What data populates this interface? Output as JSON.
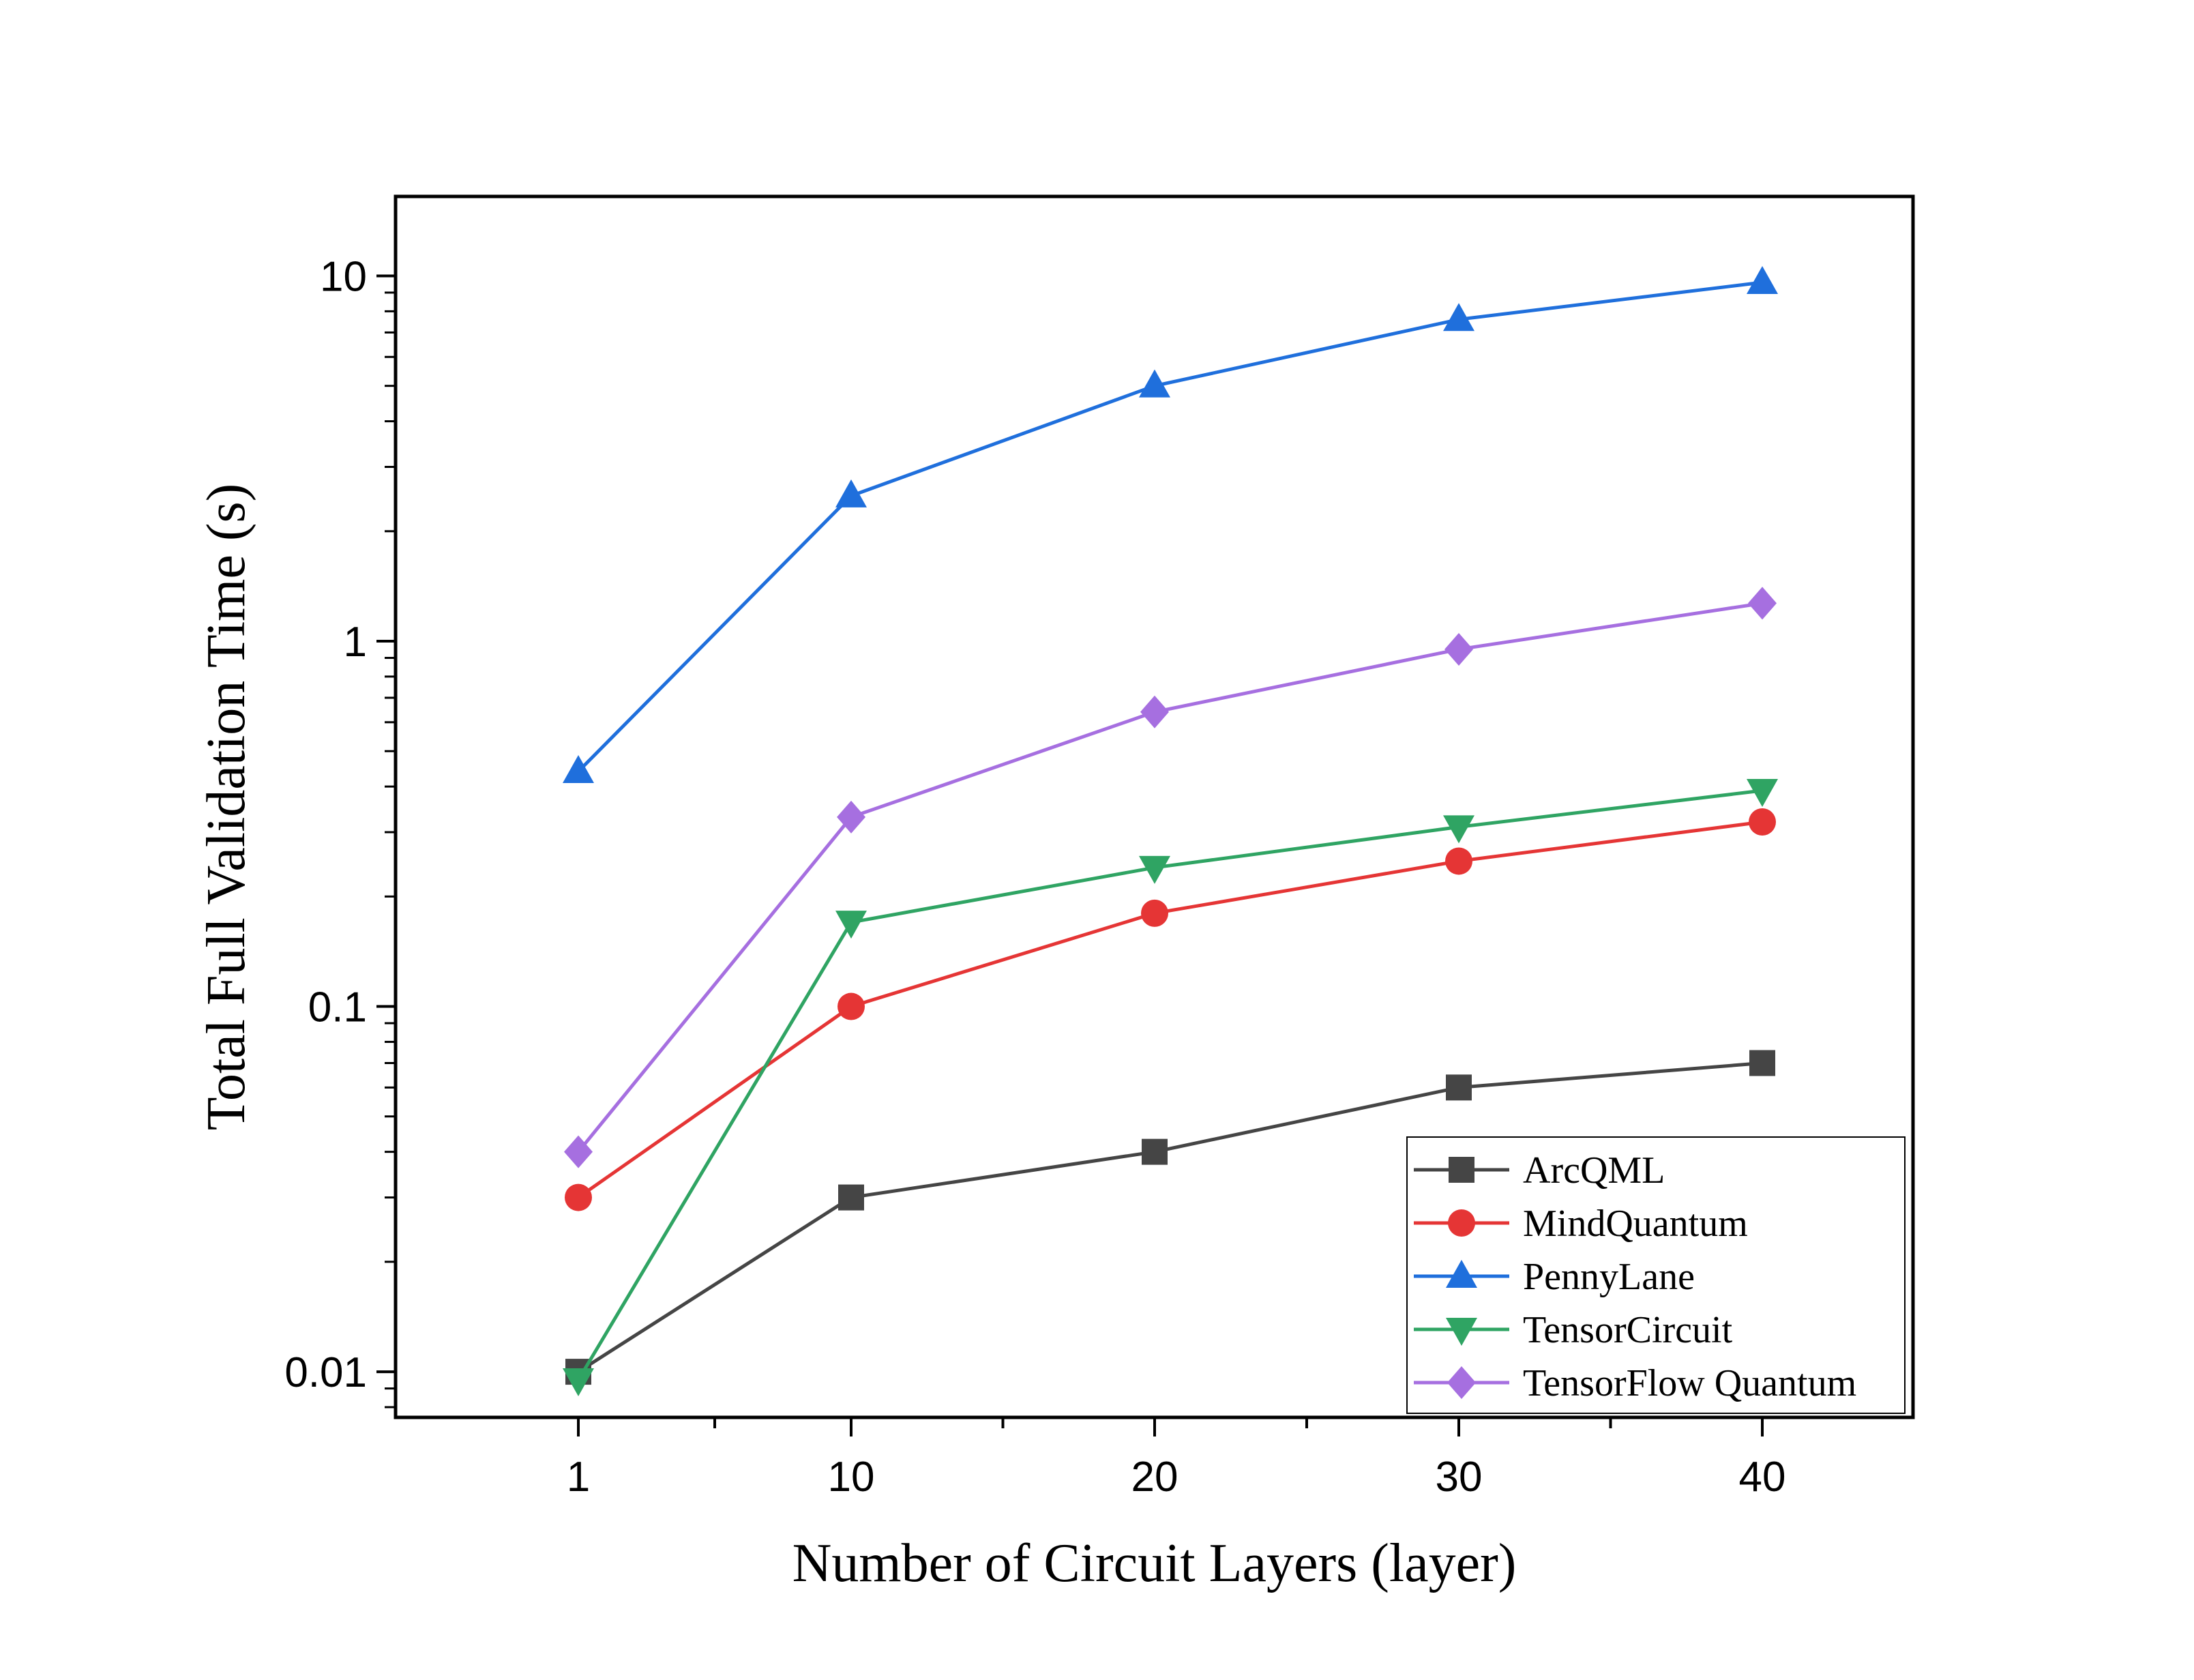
{
  "chart_data": {
    "type": "line",
    "title": "",
    "xlabel": "Number of Circuit Layers (layer)",
    "ylabel": "Total Full Validation Time (s)",
    "x": [
      1,
      10,
      20,
      30,
      40
    ],
    "x_tick_labels": [
      "1",
      "10",
      "20",
      "30",
      "40"
    ],
    "y_scale": "log",
    "ylim": [
      0.0075,
      16.5
    ],
    "y_ticks": [
      0.01,
      0.1,
      1,
      10
    ],
    "y_tick_labels": [
      "0.01",
      "0.1",
      "1",
      "10"
    ],
    "grid": false,
    "legend_position": "bottom-right",
    "series": [
      {
        "name": "ArcQML",
        "color": "#454545",
        "marker": "square",
        "values": [
          0.01,
          0.03,
          0.04,
          0.06,
          0.07
        ]
      },
      {
        "name": "MindQuantum",
        "color": "#e53535",
        "marker": "circle",
        "values": [
          0.03,
          0.1,
          0.18,
          0.25,
          0.32
        ]
      },
      {
        "name": "PennyLane",
        "color": "#1f6fdc",
        "marker": "triangle-up",
        "values": [
          0.44,
          2.5,
          5.0,
          7.6,
          9.6
        ]
      },
      {
        "name": "TensorCircuit",
        "color": "#2fa463",
        "marker": "triangle-down",
        "values": [
          0.0095,
          0.17,
          0.24,
          0.31,
          0.39
        ]
      },
      {
        "name": "TensorFlow Quantum",
        "color": "#a66fe0",
        "marker": "diamond",
        "values": [
          0.04,
          0.33,
          0.64,
          0.95,
          1.27
        ]
      }
    ]
  }
}
